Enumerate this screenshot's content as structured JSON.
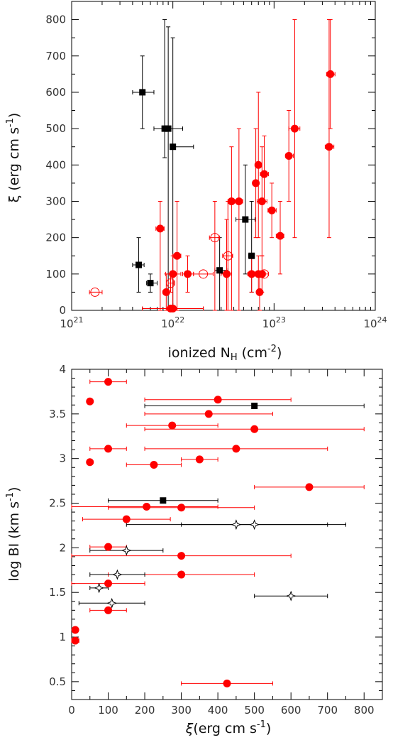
{
  "chart_data": [
    {
      "type": "scatter",
      "xscale": "log",
      "xlabel": "ionized N",
      "xlabel_sub": "H",
      "xlabel_units": "(cm",
      "xlabel_exp": "-2",
      "xlabel_close": ")",
      "ylabel": "ξ  (erg cm s",
      "ylabel_exp": "-1",
      "ylabel_close": ")",
      "xlim": [
        1e+21,
        1e+24
      ],
      "ylim": [
        0,
        850
      ],
      "xtick_base": [
        "10",
        "10",
        "10",
        "10"
      ],
      "xtick_exp": [
        "21",
        "22",
        "23",
        "24"
      ],
      "xticks": [
        1e+21,
        1e+22,
        1e+23,
        1e+24
      ],
      "yticks": [
        "0",
        "100",
        "200",
        "300",
        "400",
        "500",
        "600",
        "700",
        "800"
      ],
      "colors": {
        "red": "#ff0000",
        "black": "#000000"
      },
      "series": [
        {
          "marker": "filled-square",
          "color": "#000000",
          "points": [
            {
              "x": 5e+21,
              "y": 600,
              "xerr": [
                4e+21,
                6.5e+21
              ],
              "yerr": [
                500,
                700
              ]
            },
            {
              "x": 8.3e+21,
              "y": 500,
              "xerr": [
                6.5e+21,
                1.25e+22
              ],
              "yerr": [
                420,
                800
              ]
            },
            {
              "x": 9e+21,
              "y": 500,
              "xerr": [
                8.5e+21,
                9.5e+21
              ],
              "yerr": [
                0,
                780
              ]
            },
            {
              "x": 1e+22,
              "y": 450,
              "xerr": [
                9.5e+21,
                1.6e+22
              ],
              "yerr": [
                0,
                750
              ]
            },
            {
              "x": 4.6e+21,
              "y": 125,
              "xerr": [
                4e+21,
                5.2e+21
              ],
              "yerr": [
                50,
                200
              ]
            },
            {
              "x": 6e+21,
              "y": 75,
              "xerr": [
                5.5e+21,
                7e+21
              ],
              "yerr": [
                50,
                100
              ]
            },
            {
              "x": 2.9e+22,
              "y": 110,
              "xerr": [
                2.6e+22,
                3.5e+22
              ],
              "yerr": [
                0,
                200
              ]
            },
            {
              "x": 5.2e+22,
              "y": 250,
              "xerr": [
                4.2e+22,
                6.5e+22
              ],
              "yerr": [
                100,
                400
              ]
            },
            {
              "x": 6e+22,
              "y": 150,
              "xerr": [
                5.6e+22,
                6.4e+22
              ],
              "yerr": [
                50,
                300
              ]
            }
          ]
        },
        {
          "marker": "filled-circle",
          "color": "#ff0000",
          "points": [
            {
              "x": 3.6e+23,
              "y": 650,
              "xerr": [
                3.3e+23,
                4e+23
              ],
              "yerr": [
                500,
                800
              ]
            },
            {
              "x": 3.5e+23,
              "y": 450,
              "xerr": [
                3.2e+23,
                3.9e+23
              ],
              "yerr": [
                200,
                800
              ]
            },
            {
              "x": 1.6e+23,
              "y": 500,
              "xerr": [
                1.4e+23,
                1.8e+23
              ],
              "yerr": [
                200,
                800
              ]
            },
            {
              "x": 1.4e+23,
              "y": 425,
              "xerr": [
                1.3e+23,
                1.55e+23
              ],
              "yerr": [
                300,
                550
              ]
            },
            {
              "x": 7e+22,
              "y": 400,
              "xerr": [
                6.5e+22,
                7.5e+22
              ],
              "yerr": [
                200,
                600
              ]
            },
            {
              "x": 8e+22,
              "y": 375,
              "xerr": [
                7.3e+22,
                8.8e+22
              ],
              "yerr": [
                300,
                480
              ]
            },
            {
              "x": 6.6e+22,
              "y": 350,
              "xerr": [
                6.2e+22,
                7e+22
              ],
              "yerr": [
                200,
                500
              ]
            },
            {
              "x": 7.6e+22,
              "y": 300,
              "xerr": [
                6.8e+22,
                8.5e+22
              ],
              "yerr": [
                150,
                450
              ]
            },
            {
              "x": 9.5e+22,
              "y": 275,
              "xerr": [
                8.7e+22,
                1.05e+23
              ],
              "yerr": [
                200,
                350
              ]
            },
            {
              "x": 3.8e+22,
              "y": 300,
              "xerr": [
                3.5e+22,
                4.2e+22
              ],
              "yerr": [
                0,
                450
              ]
            },
            {
              "x": 4.5e+22,
              "y": 300,
              "xerr": [
                4.1e+22,
                4.9e+22
              ],
              "yerr": [
                0,
                500
              ]
            },
            {
              "x": 1.15e+23,
              "y": 205,
              "xerr": [
                1.05e+23,
                1.25e+23
              ],
              "yerr": [
                100,
                300
              ]
            },
            {
              "x": 7.5e+21,
              "y": 225,
              "xerr": [
                6.8e+21,
                8.2e+21
              ],
              "yerr": [
                0,
                300
              ]
            },
            {
              "x": 1.1e+22,
              "y": 150,
              "xerr": [
                1e+22,
                1.2e+22
              ],
              "yerr": [
                0,
                300
              ]
            },
            {
              "x": 3.4e+22,
              "y": 100,
              "xerr": [
                3e+22,
                3.8e+22
              ],
              "yerr": [
                0,
                250
              ]
            },
            {
              "x": 1.4e+22,
              "y": 100,
              "xerr": [
                1.25e+22,
                1.6e+22
              ],
              "yerr": [
                50,
                150
              ]
            },
            {
              "x": 1e+22,
              "y": 100,
              "xerr": [
                8.5e+21,
                1.2e+22
              ],
              "yerr": [
                0,
                150
              ]
            },
            {
              "x": 6e+22,
              "y": 100,
              "xerr": [
                5.5e+22,
                6.6e+22
              ],
              "yerr": [
                50,
                150
              ]
            },
            {
              "x": 7e+22,
              "y": 100,
              "xerr": [
                6.5e+22,
                7.5e+22
              ],
              "yerr": [
                50,
                150
              ]
            },
            {
              "x": 7.6e+22,
              "y": 100,
              "xerr": [
                7e+22,
                8.2e+22
              ],
              "yerr": [
                50,
                150
              ]
            },
            {
              "x": 8.6e+21,
              "y": 50,
              "xerr": [
                8e+21,
                9.2e+21
              ],
              "yerr": [
                0,
                100
              ]
            },
            {
              "x": 7.2e+22,
              "y": 50,
              "xerr": [
                6.8e+22,
                7.6e+22
              ],
              "yerr": [
                0,
                100
              ]
            },
            {
              "x": 9.5e+21,
              "y": 5,
              "xerr": [
                5e+21,
                2e+22
              ],
              "yerr": [
                0,
                0
              ]
            },
            {
              "x": 1e+22,
              "y": 5,
              "xerr": [
                9e+21,
                1.1e+22
              ],
              "yerr": [
                0,
                0
              ]
            }
          ]
        },
        {
          "marker": "open-circle",
          "color": "#ff0000",
          "points": [
            {
              "x": 1.7e+21,
              "y": 50,
              "xerr": [
                1.5e+21,
                2e+21
              ],
              "yerr": [
                50,
                50
              ]
            },
            {
              "x": 9.5e+21,
              "y": 75,
              "xerr": [
                9e+21,
                1.02e+22
              ],
              "yerr": [
                50,
                100
              ]
            },
            {
              "x": 2e+22,
              "y": 100,
              "xerr": [
                1.6e+22,
                2.5e+22
              ],
              "yerr": [
                100,
                100
              ]
            },
            {
              "x": 2.6e+22,
              "y": 200,
              "xerr": [
                2.3e+22,
                2.9e+22
              ],
              "yerr": [
                0,
                300
              ]
            },
            {
              "x": 3.5e+22,
              "y": 150,
              "xerr": [
                3.1e+22,
                3.9e+22
              ],
              "yerr": [
                0,
                300
              ]
            },
            {
              "x": 8e+22,
              "y": 100,
              "xerr": [
                7.2e+22,
                8.8e+22
              ],
              "yerr": [
                100,
                100
              ]
            }
          ]
        }
      ]
    },
    {
      "type": "scatter",
      "xlabel": "ξ",
      "xlabel_rest": "(erg cm s",
      "xlabel_exp": "-1",
      "xlabel_close": ")",
      "ylabel": "log BI  (km s",
      "ylabel_exp": "-1",
      "ylabel_close": ")",
      "xlim": [
        0,
        850
      ],
      "ylim": [
        0.3,
        4.0
      ],
      "xticks": [
        "0",
        "100",
        "200",
        "300",
        "400",
        "500",
        "600",
        "700",
        "800"
      ],
      "yticks": [
        "0.5",
        "1",
        "1.5",
        "2",
        "2.5",
        "3",
        "3.5",
        "4"
      ],
      "colors": {
        "red": "#ff0000",
        "black": "#000000"
      },
      "series": [
        {
          "marker": "filled-circle",
          "color": "#ff0000",
          "points": [
            {
              "x": 100,
              "y": 3.86,
              "xerr": [
                50,
                150
              ]
            },
            {
              "x": 50,
              "y": 3.64,
              "xerr": [
                50,
                50
              ]
            },
            {
              "x": 400,
              "y": 3.66,
              "xerr": [
                200,
                600
              ]
            },
            {
              "x": 375,
              "y": 3.5,
              "xerr": [
                200,
                550
              ]
            },
            {
              "x": 275,
              "y": 3.37,
              "xerr": [
                150,
                400
              ]
            },
            {
              "x": 500,
              "y": 3.33,
              "xerr": [
                200,
                800
              ]
            },
            {
              "x": 100,
              "y": 3.11,
              "xerr": [
                50,
                150
              ]
            },
            {
              "x": 450,
              "y": 3.11,
              "xerr": [
                200,
                700
              ]
            },
            {
              "x": 50,
              "y": 2.96,
              "xerr": [
                50,
                50
              ]
            },
            {
              "x": 225,
              "y": 2.93,
              "xerr": [
                150,
                300
              ]
            },
            {
              "x": 350,
              "y": 2.99,
              "xerr": [
                300,
                400
              ]
            },
            {
              "x": 650,
              "y": 2.68,
              "xerr": [
                500,
                800
              ]
            },
            {
              "x": 205,
              "y": 2.46,
              "xerr": [
                0,
                400
              ]
            },
            {
              "x": 300,
              "y": 2.45,
              "xerr": [
                100,
                500
              ]
            },
            {
              "x": 150,
              "y": 2.32,
              "xerr": [
                30,
                270
              ]
            },
            {
              "x": 100,
              "y": 2.01,
              "xerr": [
                50,
                150
              ]
            },
            {
              "x": 300,
              "y": 1.91,
              "xerr": [
                0,
                600
              ]
            },
            {
              "x": 300,
              "y": 1.7,
              "xerr": [
                100,
                500
              ]
            },
            {
              "x": 100,
              "y": 1.6,
              "xerr": [
                0,
                200
              ]
            },
            {
              "x": 100,
              "y": 1.3,
              "xerr": [
                50,
                150
              ]
            },
            {
              "x": 10,
              "y": 1.08,
              "xerr": [
                10,
                10
              ]
            },
            {
              "x": 10,
              "y": 0.96,
              "xerr": [
                0,
                20
              ]
            },
            {
              "x": 425,
              "y": 0.48,
              "xerr": [
                300,
                550
              ]
            }
          ]
        },
        {
          "marker": "filled-square",
          "color": "#000000",
          "points": [
            {
              "x": 500,
              "y": 3.59,
              "xerr": [
                200,
                800
              ]
            },
            {
              "x": 250,
              "y": 2.53,
              "xerr": [
                100,
                400
              ]
            }
          ]
        },
        {
          "marker": "open-star",
          "color": "#000000",
          "points": [
            {
              "x": 450,
              "y": 2.26,
              "xerr": [
                150,
                750
              ]
            },
            {
              "x": 500,
              "y": 2.26,
              "xerr": [
                300,
                700
              ]
            },
            {
              "x": 150,
              "y": 1.97,
              "xerr": [
                50,
                250
              ]
            },
            {
              "x": 125,
              "y": 1.7,
              "xerr": [
                50,
                200
              ]
            },
            {
              "x": 75,
              "y": 1.55,
              "xerr": [
                50,
                100
              ]
            },
            {
              "x": 110,
              "y": 1.38,
              "xerr": [
                20,
                200
              ]
            },
            {
              "x": 600,
              "y": 1.46,
              "xerr": [
                500,
                700
              ]
            }
          ]
        }
      ]
    }
  ]
}
